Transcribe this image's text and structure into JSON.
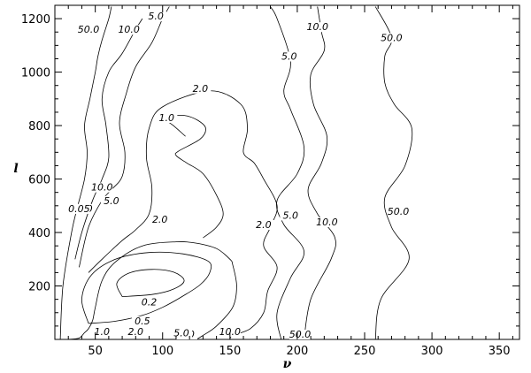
{
  "chart_data": {
    "type": "contour",
    "xlabel": "ν",
    "ylabel": "l",
    "xlim": [
      20,
      365
    ],
    "ylim": [
      0,
      1250
    ],
    "xticks": [
      50,
      100,
      150,
      200,
      250,
      300,
      350
    ],
    "yticks": [
      200,
      400,
      600,
      800,
      1000,
      1200
    ],
    "contours": [
      {
        "level": 0.2,
        "label": "0.2",
        "label_at": [
          90,
          130
        ],
        "points": [
          [
            70,
            160
          ],
          [
            66,
            210
          ],
          [
            75,
            248
          ],
          [
            92,
            262
          ],
          [
            108,
            252
          ],
          [
            116,
            220
          ],
          [
            108,
            188
          ],
          [
            92,
            168
          ],
          [
            70,
            160
          ]
        ]
      },
      {
        "level": 0.5,
        "label": "0.5",
        "label_at": [
          85,
          60
        ],
        "points": [
          [
            45,
            60
          ],
          [
            40,
            150
          ],
          [
            47,
            240
          ],
          [
            65,
            300
          ],
          [
            90,
            325
          ],
          [
            115,
            320
          ],
          [
            134,
            292
          ],
          [
            135,
            250
          ],
          [
            128,
            205
          ],
          [
            115,
            162
          ],
          [
            100,
            120
          ],
          [
            85,
            90
          ],
          [
            65,
            68
          ],
          [
            45,
            60
          ]
        ]
      },
      {
        "level": 1.0,
        "label": "1.0",
        "label_at": [
          103,
          820
        ],
        "points": [
          [
            117,
            760
          ],
          [
            108,
            800
          ],
          [
            103,
            820
          ],
          [
            106,
            833
          ],
          [
            116,
            838
          ],
          [
            126,
            820
          ],
          [
            132,
            790
          ],
          [
            128,
            750
          ],
          [
            112,
            705
          ],
          [
            110,
            688
          ],
          [
            118,
            660
          ],
          [
            130,
            620
          ],
          [
            140,
            540
          ],
          [
            145,
            470
          ],
          [
            140,
            420
          ],
          [
            130,
            380
          ]
        ]
      },
      {
        "level": 1.0,
        "label": "1.0",
        "label_at": [
          118,
          10
        ],
        "points": [
          [
            30,
            0
          ],
          [
            38,
            5
          ],
          [
            42,
            25
          ],
          [
            45,
            40
          ],
          [
            48,
            70
          ],
          [
            50,
            120
          ],
          [
            55,
            220
          ],
          [
            65,
            290
          ],
          [
            85,
            350
          ],
          [
            110,
            365
          ],
          [
            125,
            360
          ],
          [
            140,
            340
          ],
          [
            150,
            300
          ],
          [
            152,
            280
          ],
          [
            155,
            200
          ],
          [
            152,
            120
          ],
          [
            140,
            50
          ],
          [
            130,
            15
          ],
          [
            125,
            0
          ]
        ]
      },
      {
        "level": 2.0,
        "label": "2.0",
        "label_at": [
          98,
          440
        ],
        "points": [
          [
            45,
            250
          ],
          [
            55,
            300
          ],
          [
            70,
            370
          ],
          [
            80,
            410
          ],
          [
            90,
            470
          ],
          [
            92,
            570
          ],
          [
            88,
            680
          ],
          [
            90,
            790
          ],
          [
            100,
            870
          ],
          [
            135,
            930
          ],
          [
            158,
            880
          ],
          [
            163,
            790
          ],
          [
            160,
            700
          ],
          [
            168,
            660
          ],
          [
            175,
            600
          ],
          [
            185,
            500
          ],
          [
            180,
            420
          ],
          [
            175,
            350
          ],
          [
            185,
            270
          ],
          [
            178,
            180
          ],
          [
            175,
            100
          ],
          [
            165,
            40
          ],
          [
            152,
            15
          ],
          [
            150,
            0
          ]
        ]
      },
      {
        "level": 5.0,
        "label": "5.0",
        "label_at": [
          62,
          510
        ],
        "points": [
          [
            38,
            270
          ],
          [
            45,
            420
          ],
          [
            55,
            520
          ],
          [
            62,
            560
          ],
          [
            70,
            610
          ],
          [
            72,
            700
          ],
          [
            68,
            810
          ],
          [
            73,
            920
          ],
          [
            80,
            1020
          ],
          [
            92,
            1110
          ],
          [
            100,
            1200
          ],
          [
            105,
            1245
          ]
        ]
      },
      {
        "level": 5.0,
        "label": "5.0",
        "label_at": [
          195,
          455
        ],
        "points": [
          [
            188,
            0
          ],
          [
            185,
            100
          ],
          [
            195,
            230
          ],
          [
            205,
            330
          ],
          [
            190,
            430
          ],
          [
            185,
            520
          ],
          [
            200,
            620
          ],
          [
            205,
            720
          ],
          [
            195,
            860
          ],
          [
            190,
            930
          ],
          [
            195,
            1040
          ],
          [
            185,
            1200
          ],
          [
            180,
            1245
          ]
        ]
      },
      {
        "level": 10.0,
        "label": "10.0",
        "label_at": [
          55,
          560
        ],
        "points": [
          [
            35,
            300
          ],
          [
            40,
            400
          ],
          [
            48,
            520
          ],
          [
            55,
            600
          ],
          [
            60,
            680
          ],
          [
            58,
            800
          ],
          [
            55,
            900
          ],
          [
            60,
            1000
          ],
          [
            70,
            1070
          ],
          [
            80,
            1160
          ],
          [
            85,
            1200
          ]
        ]
      },
      {
        "level": 10.0,
        "label": "10.0",
        "label_at": [
          222,
          430
        ],
        "points": [
          [
            205,
            0
          ],
          [
            210,
            150
          ],
          [
            225,
            300
          ],
          [
            228,
            380
          ],
          [
            215,
            470
          ],
          [
            208,
            560
          ],
          [
            218,
            660
          ],
          [
            222,
            760
          ],
          [
            212,
            880
          ],
          [
            210,
            990
          ],
          [
            220,
            1080
          ],
          [
            218,
            1150
          ],
          [
            215,
            1245
          ]
        ]
      },
      {
        "level": 50.0,
        "label": "50.0",
        "label_at": [
          40,
          480
        ],
        "points": [
          [
            24,
            0
          ],
          [
            26,
            200
          ],
          [
            32,
            390
          ],
          [
            36,
            480
          ],
          [
            42,
            600
          ],
          [
            44,
            700
          ],
          [
            42,
            800
          ],
          [
            46,
            900
          ],
          [
            50,
            1000
          ],
          [
            52,
            1060
          ],
          [
            55,
            1120
          ],
          [
            60,
            1200
          ],
          [
            62,
            1245
          ]
        ]
      },
      {
        "level": 50.0,
        "label": "50.0",
        "label_at": [
          275,
          470
        ],
        "points": [
          [
            258,
            0
          ],
          [
            262,
            150
          ],
          [
            283,
            300
          ],
          [
            270,
            420
          ],
          [
            265,
            530
          ],
          [
            280,
            650
          ],
          [
            285,
            790
          ],
          [
            272,
            880
          ],
          [
            265,
            960
          ],
          [
            265,
            1060
          ],
          [
            270,
            1130
          ],
          [
            258,
            1245
          ]
        ]
      }
    ],
    "extra_labels": [
      {
        "text": "50.0",
        "at": [
          45,
          1150
        ]
      },
      {
        "text": "10.0",
        "at": [
          75,
          1150
        ]
      },
      {
        "text": "5.0",
        "at": [
          95,
          1200
        ]
      },
      {
        "text": "10.0",
        "at": [
          215,
          1160
        ]
      },
      {
        "text": "5.0",
        "at": [
          194,
          1050
        ]
      },
      {
        "text": "50.0",
        "at": [
          270,
          1120
        ]
      },
      {
        "text": "2.0",
        "at": [
          128,
          930
        ]
      },
      {
        "text": "1.0",
        "at": [
          55,
          20
        ]
      },
      {
        "text": "2.0",
        "at": [
          80,
          20
        ]
      },
      {
        "text": "5.0",
        "at": [
          114,
          15
        ]
      },
      {
        "text": "10.0",
        "at": [
          150,
          20
        ]
      },
      {
        "text": "50.0",
        "at": [
          202,
          10
        ]
      },
      {
        "text": "2.0",
        "at": [
          175,
          420
        ]
      },
      {
        "text": "0.05",
        "at": [
          38,
          480
        ]
      }
    ]
  }
}
